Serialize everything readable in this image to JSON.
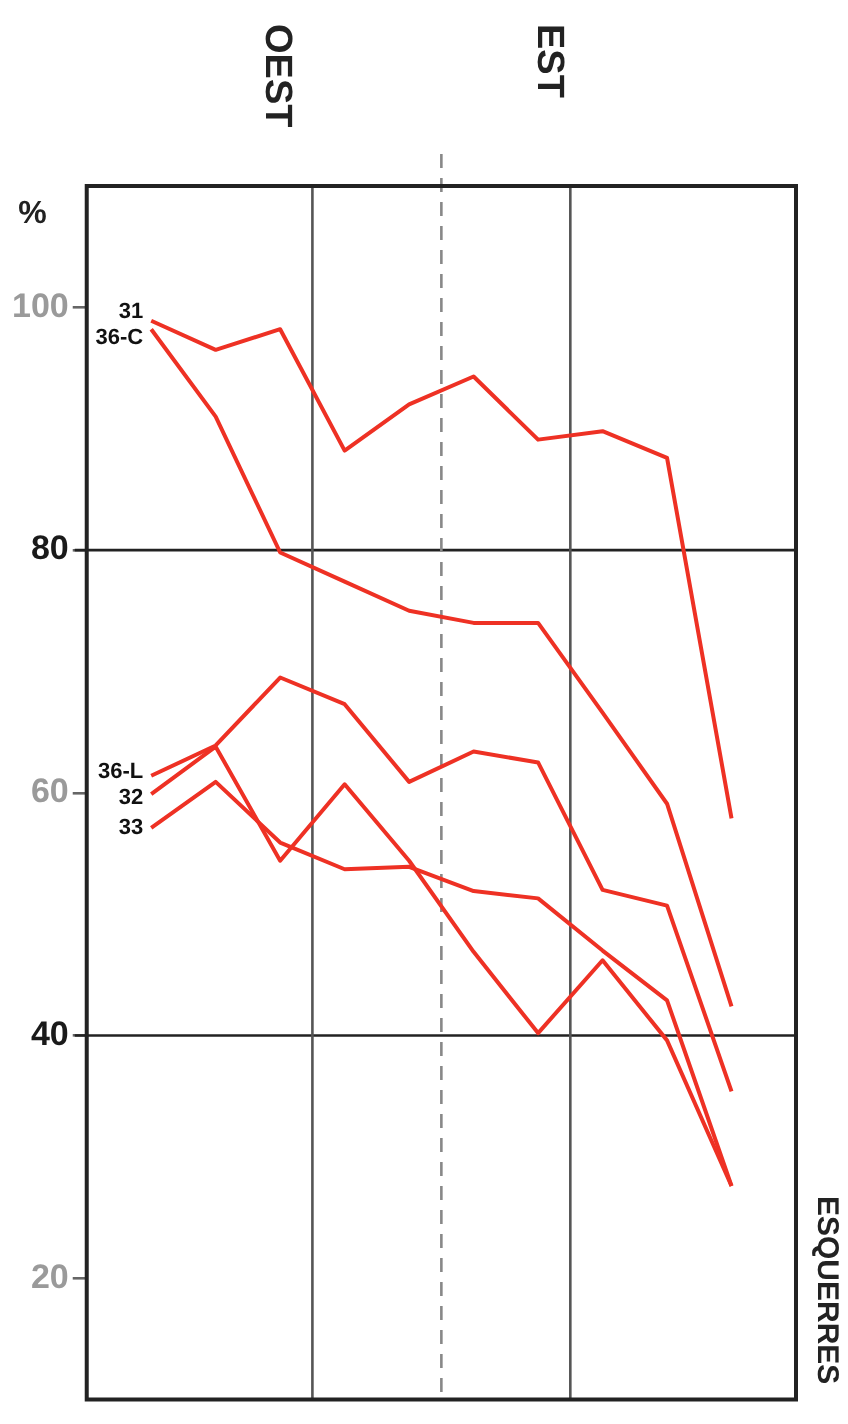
{
  "chart_data": {
    "type": "line",
    "ylabel": "%",
    "categories": [
      null,
      null,
      null,
      null,
      null,
      null,
      null,
      null,
      null,
      null
    ],
    "ylim": [
      10,
      110
    ],
    "yticks": [
      20,
      40,
      60,
      80,
      100
    ],
    "grid": false,
    "legend": false,
    "marker": "none",
    "line_style": "solid",
    "series": [
      {
        "name": "31",
        "color": "#ee3124",
        "values": [
          98.9,
          96.5,
          98.2,
          88.2,
          92.0,
          94.3,
          89.1,
          89.8,
          87.6,
          57.9
        ]
      },
      {
        "name": "36-C",
        "color": "#ee3124",
        "values": [
          98.2,
          91.0,
          79.8,
          77.4,
          75.0,
          74.0,
          74.0,
          66.6,
          59.1,
          42.4
        ]
      },
      {
        "name": "36-L",
        "color": "#ee3124",
        "values": [
          61.4,
          63.9,
          69.5,
          67.3,
          60.9,
          63.4,
          62.5,
          52.0,
          50.7,
          35.4
        ]
      },
      {
        "name": "32",
        "color": "#ee3124",
        "values": [
          59.9,
          63.8,
          54.4,
          60.7,
          54.4,
          46.9,
          40.2,
          46.2,
          39.6,
          27.6
        ]
      },
      {
        "name": "33",
        "color": "#ee3124",
        "values": [
          57.1,
          60.9,
          55.9,
          53.7,
          53.9,
          51.9,
          51.3,
          47.0,
          42.9,
          27.6
        ]
      }
    ],
    "ref_lines": [
      {
        "axis": "y",
        "value": 80,
        "color": "#222222"
      },
      {
        "axis": "y",
        "value": 40,
        "color": "#222222"
      }
    ],
    "annotations": [
      "OEST",
      "EST",
      "ESQUERRES"
    ]
  }
}
